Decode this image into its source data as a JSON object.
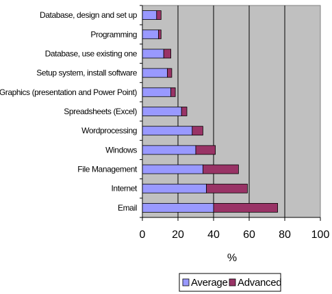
{
  "chart_data": {
    "type": "bar",
    "orientation": "horizontal",
    "stacked": true,
    "categories": [
      "Database, design and set up",
      "Programming",
      "Database, use existing one",
      "Setup system, install software",
      "Graphics (presentation and Power Point)",
      "Spreadsheets (Excel)",
      "Wordprocessing",
      "Windows",
      "File Management",
      "Internet",
      "Email"
    ],
    "series": [
      {
        "name": "Average",
        "color": "#9999ff",
        "values": [
          8,
          9,
          12,
          14,
          16,
          22,
          28,
          30,
          34,
          36,
          40
        ]
      },
      {
        "name": "Advanced",
        "color": "#993366",
        "values": [
          2.5,
          1.5,
          4,
          2.5,
          2.5,
          3,
          6,
          11,
          20,
          23,
          36
        ]
      }
    ],
    "x_ticks": [
      "0",
      "20",
      "40",
      "60",
      "80",
      "100"
    ],
    "xlim": [
      0,
      100
    ],
    "xlabel": "%",
    "grid": true,
    "plot_background": "#c0c0c0",
    "legend": {
      "placement": "bottom",
      "items": [
        "Average",
        "Advanced"
      ]
    }
  }
}
